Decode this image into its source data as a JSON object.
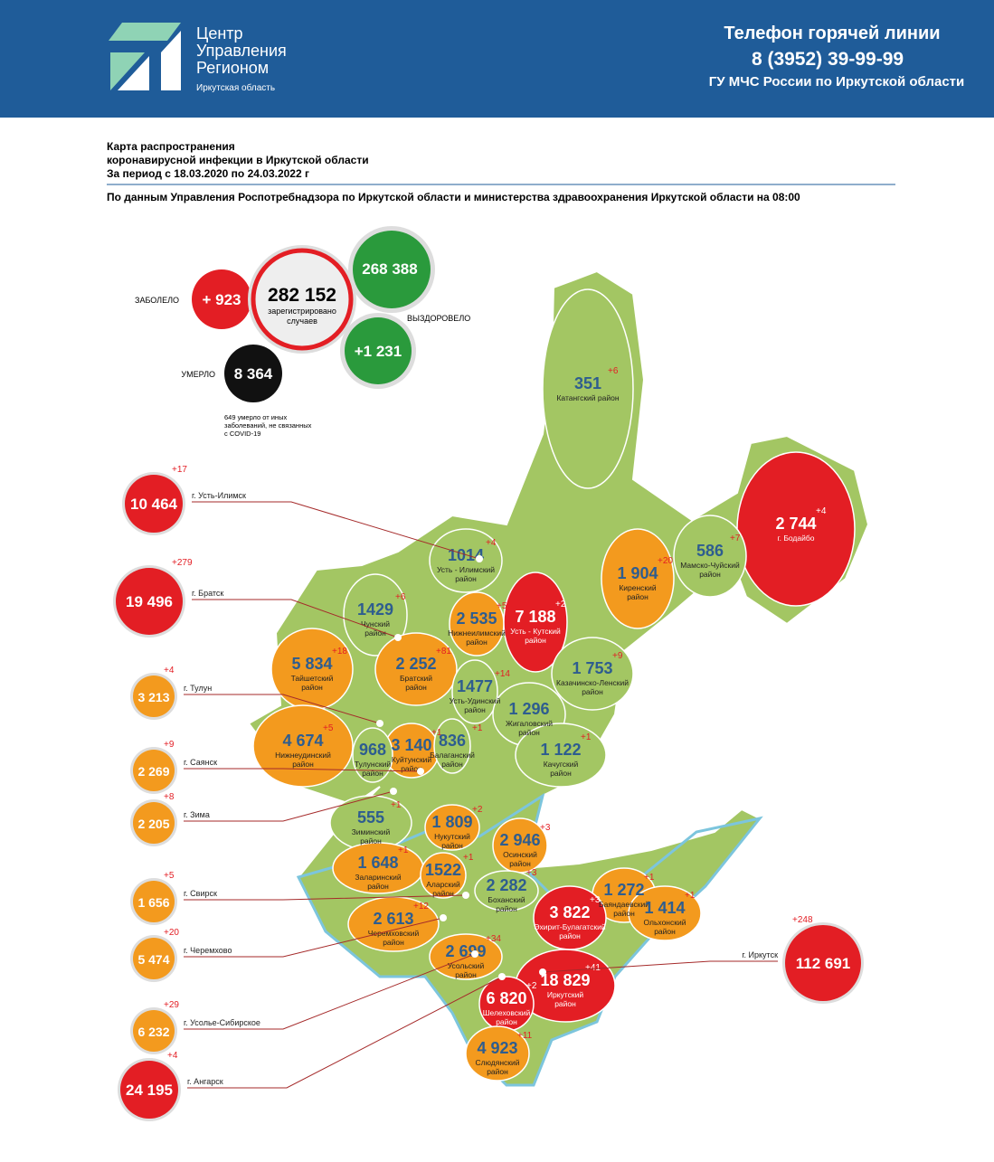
{
  "header": {
    "logo": [
      "Центр",
      "Управления",
      "Регионом"
    ],
    "region": "Иркутская область",
    "hotline_title": "Телефон горячей линии",
    "hotline_phone": "8 (3952) 39-99-99",
    "hotline_org": "ГУ МЧС России по Иркутской области"
  },
  "title": [
    "Карта распространения",
    "коронавирусной инфекции в Иркутской области",
    "За период с 18.03.2020 по 24.03.2022 г"
  ],
  "source": "По данным Управления Роспотребнадзора по Иркутской области и министерства здравоохранения Иркутской области на 08:00",
  "summary": {
    "sick_label": "ЗАБОЛЕЛО",
    "sick_new": "+ 923",
    "total": "282 152",
    "total_caption": [
      "зарегистрировано",
      "случаев"
    ],
    "recovered": "268 388",
    "recovered_label": "ВЫЗДОРОВЕЛО",
    "recovered_new": "+1 231",
    "died_label": "УМЕРЛО",
    "died": "8 364",
    "died_note": [
      "649 умерло от иных",
      "заболеваний, не связанных",
      "с COVID-19"
    ]
  },
  "cities": [
    {
      "name": "г. Усть-Илимск",
      "value": "10 464",
      "delta": "+17",
      "color": "#e31e24"
    },
    {
      "name": "г. Братск",
      "value": "19 496",
      "delta": "+279",
      "color": "#e31e24"
    },
    {
      "name": "г. Тулун",
      "value": "3 213",
      "delta": "+4",
      "color": "#f39a1e"
    },
    {
      "name": "г. Саянск",
      "value": "2 269",
      "delta": "+9",
      "color": "#f39a1e"
    },
    {
      "name": "г. Зима",
      "value": "2 205",
      "delta": "+8",
      "color": "#f39a1e"
    },
    {
      "name": "г. Свирск",
      "value": "1 656",
      "delta": "+5",
      "color": "#f39a1e"
    },
    {
      "name": "г. Черемхово",
      "value": "5 474",
      "delta": "+20",
      "color": "#f39a1e"
    },
    {
      "name": "г. Усолье-Сибирское",
      "value": "6 232",
      "delta": "+29",
      "color": "#f39a1e"
    },
    {
      "name": "г. Ангарск",
      "value": "24 195",
      "delta": "+4",
      "color": "#e31e24"
    },
    {
      "name": "г. Иркутск",
      "value": "112 691",
      "delta": "+248",
      "color": "#e31e24"
    }
  ],
  "districts": [
    {
      "name": [
        "Катангский район"
      ],
      "value": "351",
      "delta": "+6",
      "color": "#a3c663"
    },
    {
      "name": [
        "г. Бодайбо"
      ],
      "value": "2 744",
      "delta": "+4",
      "color": "#e31e24"
    },
    {
      "name": [
        "Мамско-Чуйский",
        "район"
      ],
      "value": "586",
      "delta": "+7",
      "color": "#a3c663"
    },
    {
      "name": [
        "Киренский",
        "район"
      ],
      "value": "1 904",
      "delta": "+20",
      "color": "#f39a1e"
    },
    {
      "name": [
        "Усть - Илимский",
        "район"
      ],
      "value": "1014",
      "delta": "+4",
      "color": "#a3c663"
    },
    {
      "name": [
        "Чунский",
        "район"
      ],
      "value": "1429",
      "delta": "+6",
      "color": "#a3c663"
    },
    {
      "name": [
        "Нижнеилимский",
        "район"
      ],
      "value": "2 535",
      "delta": "+5",
      "color": "#f39a1e"
    },
    {
      "name": [
        "Усть - Кутский",
        "район"
      ],
      "value": "7 188",
      "delta": "+2",
      "color": "#e31e24"
    },
    {
      "name": [
        "Тайшетский",
        "район"
      ],
      "value": "5 834",
      "delta": "+18",
      "color": "#f39a1e"
    },
    {
      "name": [
        "Братский",
        "район"
      ],
      "value": "2 252",
      "delta": "+81",
      "color": "#f39a1e"
    },
    {
      "name": [
        "Усть-Удинский",
        "район"
      ],
      "value": "1477",
      "delta": "+14",
      "color": "#a3c663"
    },
    {
      "name": [
        "Казачинско-Ленский",
        "район"
      ],
      "value": "1 753",
      "delta": "+9",
      "color": "#a3c663"
    },
    {
      "name": [
        "Нижнеудинский",
        "район"
      ],
      "value": "4 674",
      "delta": "+5",
      "color": "#f39a1e"
    },
    {
      "name": [
        "Куйтунский",
        "район"
      ],
      "value": "3 140",
      "delta": "+1",
      "color": "#f39a1e"
    },
    {
      "name": [
        "Тулунский",
        "район"
      ],
      "value": "968",
      "color": "#a3c663"
    },
    {
      "name": [
        "Балаганский",
        "район"
      ],
      "value": "836",
      "delta": "+1",
      "color": "#a3c663"
    },
    {
      "name": [
        "Жигаловский",
        "район"
      ],
      "value": "1 296",
      "color": "#a3c663"
    },
    {
      "name": [
        "Качугский",
        "район"
      ],
      "value": "1 122",
      "delta": "+1",
      "color": "#a3c663"
    },
    {
      "name": [
        "Зиминский",
        "район"
      ],
      "value": "555",
      "delta": "+1",
      "color": "#a3c663"
    },
    {
      "name": [
        "Нукутский",
        "район"
      ],
      "value": "1 809",
      "delta": "+2",
      "color": "#f39a1e"
    },
    {
      "name": [
        "Осинский",
        "район"
      ],
      "value": "2 946",
      "delta": "+3",
      "color": "#f39a1e"
    },
    {
      "name": [
        "Заларинский",
        "район"
      ],
      "value": "1 648",
      "delta": "+1",
      "color": "#f39a1e"
    },
    {
      "name": [
        "Аларский",
        "район"
      ],
      "value": "1522",
      "delta": "+1",
      "color": "#f39a1e"
    },
    {
      "name": [
        "Боханский",
        "район"
      ],
      "value": "2 282",
      "delta": "+3",
      "color": "#a3c663"
    },
    {
      "name": [
        "Баяндаевский",
        "район"
      ],
      "value": "1 272",
      "delta": "+1",
      "color": "#f39a1e"
    },
    {
      "name": [
        "Эхирит-Булагатский",
        "район"
      ],
      "value": "3 822",
      "delta": "+3",
      "color": "#e31e24"
    },
    {
      "name": [
        "Ольхонский",
        "район"
      ],
      "value": "1 414",
      "delta": "+1",
      "color": "#f39a1e"
    },
    {
      "name": [
        "Черемховский",
        "район"
      ],
      "value": "2 613",
      "delta": "+12",
      "color": "#f39a1e"
    },
    {
      "name": [
        "Усольский",
        "район"
      ],
      "value": "2 699",
      "delta": "+34",
      "color": "#f39a1e"
    },
    {
      "name": [
        "Иркутский",
        "район"
      ],
      "value": "18 829",
      "delta": "+41",
      "color": "#e31e24"
    },
    {
      "name": [
        "Шелеховский",
        "район"
      ],
      "value": "6 820",
      "delta": "+2",
      "color": "#e31e24"
    },
    {
      "name": [
        "Слюдянский",
        "район"
      ],
      "value": "4 923",
      "delta": "+11",
      "color": "#f39a1e"
    }
  ]
}
